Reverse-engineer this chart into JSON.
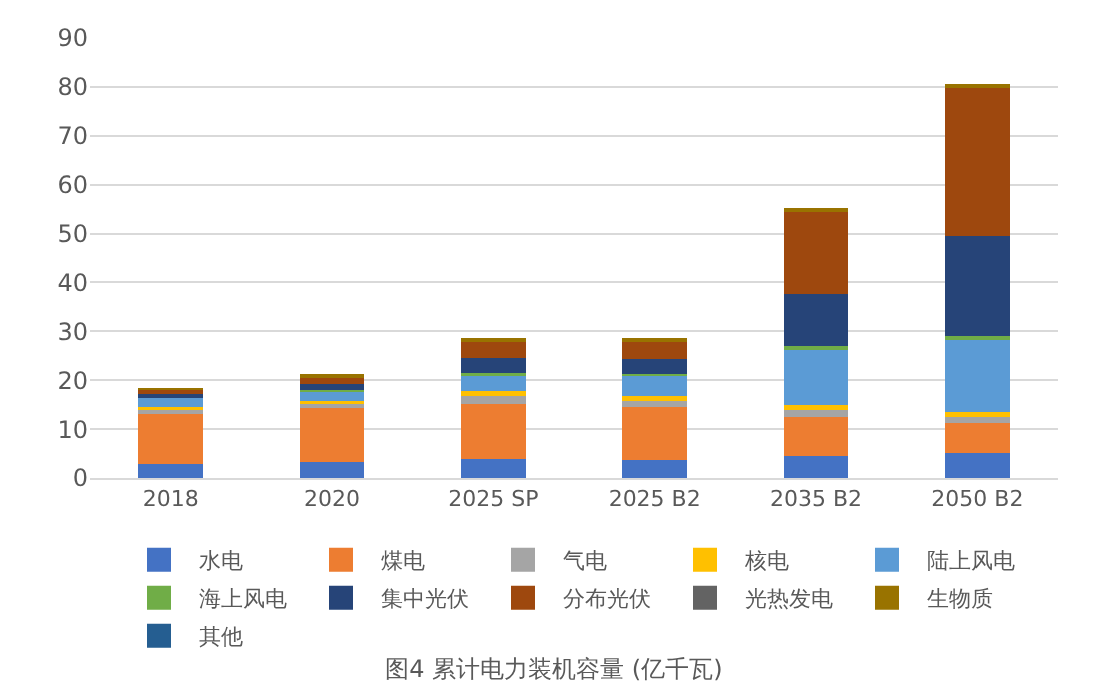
{
  "chart_data": {
    "type": "bar",
    "stacked": true,
    "title": "图4 累计电力装机容量 (亿千瓦)",
    "categories": [
      "2018",
      "2020",
      "2025 SP",
      "2025 B2",
      "2035 B2",
      "2050 B2"
    ],
    "series": [
      {
        "name": "水电",
        "color": "#4472c4",
        "values": [
          2.8,
          3.2,
          3.8,
          3.7,
          4.4,
          5.1
        ]
      },
      {
        "name": "煤电",
        "color": "#ed7d31",
        "values": [
          10.6,
          11.1,
          11.4,
          10.8,
          8.0,
          6.2
        ]
      },
      {
        "name": "气电",
        "color": "#a5a5a5",
        "values": [
          0.7,
          0.9,
          1.7,
          1.3,
          1.7,
          1.1
        ]
      },
      {
        "name": "核电",
        "color": "#ffc000",
        "values": [
          0.5,
          0.5,
          0.8,
          0.9,
          0.8,
          1.0
        ]
      },
      {
        "name": "陆上风电",
        "color": "#5b9bd5",
        "values": [
          1.8,
          2.2,
          3.4,
          4.3,
          11.4,
          15.2
        ]
      },
      {
        "name": "海上风电",
        "color": "#70ad47",
        "values": [
          null,
          0.1,
          0.3,
          0.2,
          0.6,
          0.4
        ]
      },
      {
        "name": "集中光伏",
        "color": "#264478",
        "values": [
          1.1,
          1.3,
          3.2,
          3.1,
          10.8,
          20.5
        ]
      },
      {
        "name": "分布光伏",
        "color": "#9e480e",
        "values": [
          0.7,
          1.3,
          3.5,
          3.8,
          16.9,
          30.4
        ]
      },
      {
        "name": "光热发电",
        "color": "#636363",
        "values": [
          null,
          null,
          null,
          null,
          null,
          null
        ]
      },
      {
        "name": "生物质",
        "color": "#997300",
        "values": [
          0.2,
          0.3,
          0.4,
          0.3,
          0.4,
          0.3
        ]
      },
      {
        "name": "其他",
        "color": "#255e91",
        "values": [
          null,
          null,
          null,
          null,
          null,
          null
        ]
      }
    ],
    "ylim": [
      0,
      90
    ],
    "yticks": [
      0,
      10,
      20,
      30,
      40,
      50,
      60,
      70,
      80,
      90
    ],
    "grid": "y",
    "legend": "bottom"
  }
}
